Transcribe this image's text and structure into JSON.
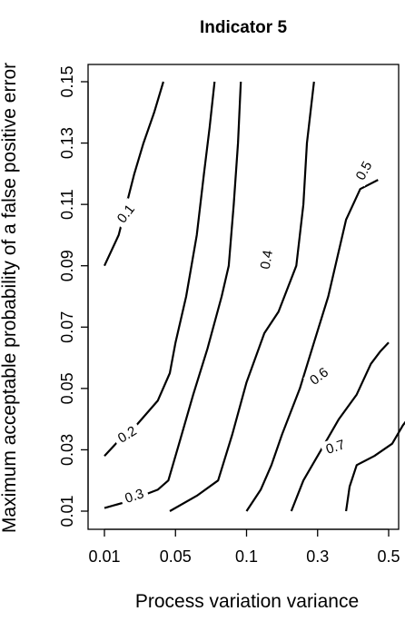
{
  "chart_data": {
    "type": "contour",
    "title": "Indicator 5",
    "xlabel": "Process variation variance",
    "ylabel": "Maximum acceptable probability of a false positive error",
    "x_ticks": [
      "0.01",
      "0.05",
      "0.1",
      "0.3",
      "0.5"
    ],
    "y_ticks": [
      "0.01",
      "0.03",
      "0.05",
      "0.07",
      "0.09",
      "0.11",
      "0.13",
      "0.15"
    ],
    "ylim": [
      0.01,
      0.15
    ],
    "x_scale": "categorical",
    "line_color": "#000000",
    "contours": [
      {
        "level": "0.1",
        "points": [
          [
            0.0,
            0.09
          ],
          [
            0.2,
            0.1
          ],
          [
            0.42,
            0.12
          ],
          [
            0.55,
            0.13
          ],
          [
            0.7,
            0.14
          ],
          [
            0.83,
            0.15
          ]
        ]
      },
      {
        "level": "0.2",
        "points": [
          [
            0.0,
            0.028
          ],
          [
            0.2,
            0.033
          ],
          [
            0.45,
            0.038
          ],
          [
            0.75,
            0.046
          ],
          [
            0.92,
            0.055
          ],
          [
            1.0,
            0.065
          ],
          [
            1.15,
            0.08
          ],
          [
            1.3,
            0.1
          ],
          [
            1.4,
            0.12
          ],
          [
            1.48,
            0.135
          ],
          [
            1.55,
            0.15
          ]
        ]
      },
      {
        "level": "0.3",
        "points": [
          [
            0.0,
            0.011
          ],
          [
            0.3,
            0.013
          ],
          [
            0.75,
            0.017
          ],
          [
            0.9,
            0.02
          ],
          [
            1.05,
            0.032
          ],
          [
            1.25,
            0.048
          ],
          [
            1.45,
            0.063
          ],
          [
            1.65,
            0.08
          ],
          [
            1.75,
            0.09
          ],
          [
            1.82,
            0.11
          ],
          [
            1.88,
            0.13
          ],
          [
            1.92,
            0.15
          ]
        ]
      },
      {
        "level": "0.4",
        "points": [
          [
            0.92,
            0.01
          ],
          [
            1.3,
            0.015
          ],
          [
            1.6,
            0.02
          ],
          [
            1.8,
            0.035
          ],
          [
            2.0,
            0.052
          ],
          [
            2.25,
            0.068
          ],
          [
            2.45,
            0.075
          ],
          [
            2.7,
            0.09
          ],
          [
            2.8,
            0.11
          ],
          [
            2.85,
            0.13
          ],
          [
            2.95,
            0.15
          ]
        ]
      },
      {
        "level": "0.5",
        "points": [
          [
            2.0,
            0.01
          ],
          [
            2.2,
            0.017
          ],
          [
            2.35,
            0.025
          ],
          [
            2.5,
            0.035
          ],
          [
            2.75,
            0.05
          ],
          [
            2.95,
            0.065
          ],
          [
            3.15,
            0.08
          ],
          [
            3.4,
            0.105
          ],
          [
            3.6,
            0.115
          ],
          [
            3.85,
            0.118
          ]
        ]
      },
      {
        "level": "0.6",
        "points": [
          [
            2.63,
            0.01
          ],
          [
            2.8,
            0.02
          ],
          [
            3.05,
            0.03
          ],
          [
            3.3,
            0.04
          ],
          [
            3.55,
            0.048
          ],
          [
            3.75,
            0.058
          ],
          [
            3.88,
            0.062
          ],
          [
            4.0,
            0.065
          ]
        ]
      },
      {
        "level": "0.7",
        "points": [
          [
            3.4,
            0.01
          ],
          [
            3.45,
            0.018
          ],
          [
            3.55,
            0.025
          ],
          [
            3.8,
            0.028
          ],
          [
            4.05,
            0.032
          ],
          [
            4.2,
            0.038
          ],
          [
            4.3,
            0.041
          ],
          [
            4.45,
            0.042
          ]
        ]
      }
    ],
    "labels": [
      {
        "text": "0.1",
        "x": 0.3,
        "y": 0.107,
        "angle": -52
      },
      {
        "text": "0.2",
        "x": 0.32,
        "y": 0.035,
        "angle": -32
      },
      {
        "text": "0.3",
        "x": 0.42,
        "y": 0.015,
        "angle": -18
      },
      {
        "text": "0.4",
        "x": 2.28,
        "y": 0.092,
        "angle": -80
      },
      {
        "text": "0.5",
        "x": 3.65,
        "y": 0.121,
        "angle": -62
      },
      {
        "text": "0.6",
        "x": 3.02,
        "y": 0.054,
        "angle": -38
      },
      {
        "text": "0.7",
        "x": 3.25,
        "y": 0.031,
        "angle": -18
      }
    ]
  }
}
